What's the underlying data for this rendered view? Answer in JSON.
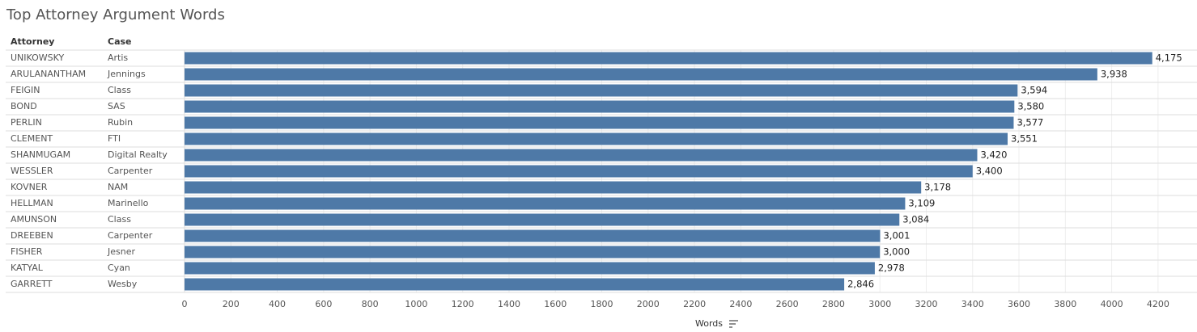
{
  "chart_data": {
    "type": "bar",
    "orientation": "horizontal",
    "title": "Top Attorney Argument Words",
    "row_headers": [
      "Attorney",
      "Case"
    ],
    "categories": [
      "UNIKOWSKY",
      "ARULANANTHAM",
      "FEIGIN",
      "BOND",
      "PERLIN",
      "CLEMENT",
      "SHANMUGAM",
      "WESSLER",
      "KOVNER",
      "HELLMAN",
      "AMUNSON",
      "DREEBEN",
      "FISHER",
      "KATYAL",
      "GARRETT"
    ],
    "cases": [
      "Artis",
      "Jennings",
      "Class",
      "SAS",
      "Rubin",
      "FTI",
      "Digital Realty",
      "Carpenter",
      "NAM",
      "Marinello",
      "Class",
      "Carpenter",
      "Jesner",
      "Cyan",
      "Wesby"
    ],
    "values": [
      4175,
      3938,
      3594,
      3580,
      3577,
      3551,
      3420,
      3400,
      3178,
      3109,
      3084,
      3001,
      3000,
      2978,
      2846
    ],
    "value_labels": [
      "4,175",
      "3,938",
      "3,594",
      "3,580",
      "3,577",
      "3,551",
      "3,420",
      "3,400",
      "3,178",
      "3,109",
      "3,084",
      "3,001",
      "3,000",
      "2,978",
      "2,846"
    ],
    "color": "#4e79a7",
    "x_label": "Words",
    "xlim": [
      0,
      4368
    ],
    "xticks": [
      0,
      200,
      400,
      600,
      800,
      1000,
      1200,
      1400,
      1600,
      1800,
      2000,
      2200,
      2400,
      2600,
      2800,
      3000,
      3200,
      3400,
      3600,
      3800,
      4000,
      4200
    ],
    "grid": true
  }
}
